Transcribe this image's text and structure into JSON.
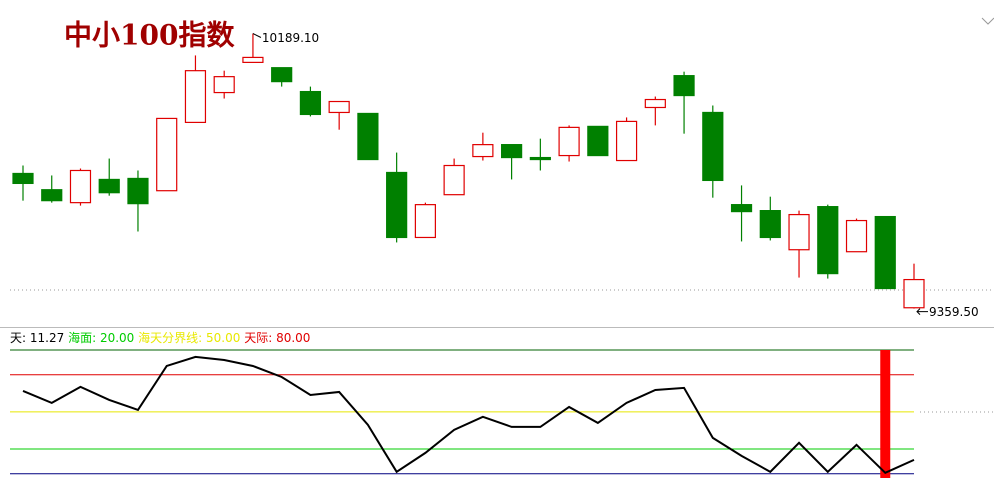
{
  "chart_data": [
    {
      "type": "candlestick",
      "title": "中小100指数",
      "categories": [
        null,
        null,
        null,
        null,
        null,
        null,
        null,
        null,
        null,
        null,
        null,
        null,
        null,
        null,
        null,
        null,
        null,
        null,
        null,
        null,
        null,
        null,
        null,
        null,
        null,
        null,
        null,
        null,
        null,
        null,
        null,
        null
      ],
      "open": [
        9767,
        9718,
        9679,
        9749,
        9752,
        9715,
        9921,
        10011,
        10102,
        10086,
        10014,
        9951,
        9948,
        9770,
        9574,
        9703,
        9818,
        9854,
        9815,
        9821,
        9909,
        9806,
        9966,
        10062,
        9951,
        9673,
        9655,
        9537,
        9667,
        9531,
        9637,
        9362
      ],
      "high": [
        9791,
        9761,
        9782,
        9812,
        9776,
        9933,
        10123,
        10077,
        10189.1,
        10086,
        10029,
        9984,
        9948,
        9830,
        9679,
        9812,
        9890,
        9854,
        9872,
        9912,
        9909,
        9936,
        9999,
        10074,
        9972,
        9731,
        9697,
        9655,
        9673,
        9631,
        9637,
        9495
      ],
      "low": [
        9685,
        9679,
        9670,
        9700,
        9592,
        9715,
        9921,
        9993,
        10102,
        10029,
        9939,
        9899,
        9809,
        9559,
        9574,
        9703,
        9806,
        9749,
        9776,
        9803,
        9821,
        9806,
        9912,
        9887,
        9694,
        9562,
        9565,
        9453,
        9450,
        9531,
        9420,
        9359.5
      ],
      "close": [
        9737,
        9685,
        9776,
        9709,
        9676,
        9933,
        10077,
        10059,
        10117,
        10044,
        9945,
        9984,
        9809,
        9574,
        9673,
        9791,
        9854,
        9815,
        9809,
        9906,
        9821,
        9924,
        9990,
        10002,
        9746,
        9652,
        9574,
        9643,
        9465,
        9625,
        9420,
        9447
      ],
      "up_color": "#e00000",
      "down_color": "#008000",
      "ylim": [
        9310,
        10260
      ],
      "high_label": "10189.10",
      "low_label": "9359.50"
    },
    {
      "type": "line",
      "categories": [
        null,
        null,
        null,
        null,
        null,
        null,
        null,
        null,
        null,
        null,
        null,
        null,
        null,
        null,
        null,
        null,
        null,
        null,
        null,
        null,
        null,
        null,
        null,
        null,
        null,
        null,
        null,
        null,
        null,
        null,
        null,
        null
      ],
      "series": [
        {
          "name": "天",
          "color": "#000000",
          "values": [
            66.9,
            57.3,
            70.2,
            59.7,
            51.6,
            87.1,
            94.4,
            91.9,
            87.1,
            78.2,
            63.7,
            66.1,
            39.5,
            1.6,
            16.9,
            35.5,
            46.0,
            37.9,
            37.9,
            54.0,
            41.1,
            57.3,
            67.7,
            69.4,
            29.0,
            14.5,
            1.6,
            25.0,
            1.6,
            23.4,
            0.8,
            11.27
          ]
        }
      ],
      "levels": [
        {
          "name": "海面",
          "value": 20,
          "label": "20.00",
          "color": "#00cc00"
        },
        {
          "name": "海天分界线",
          "value": 50,
          "label": "50.00",
          "color": "#e8e800"
        },
        {
          "name": "天际",
          "value": 80,
          "label": "80.00",
          "color": "#e00000"
        }
      ],
      "bounds": [
        {
          "value": 100,
          "color": "#006000"
        },
        {
          "value": 0,
          "color": "#000080"
        }
      ],
      "signal": {
        "color": "#ff0000",
        "values": [
          null,
          null,
          null,
          null,
          null,
          null,
          null,
          null,
          null,
          null,
          null,
          null,
          null,
          null,
          null,
          null,
          null,
          null,
          null,
          null,
          null,
          null,
          null,
          null,
          null,
          null,
          null,
          null,
          null,
          null,
          100,
          null
        ]
      },
      "ylim": [
        -5,
        100
      ]
    }
  ]
}
